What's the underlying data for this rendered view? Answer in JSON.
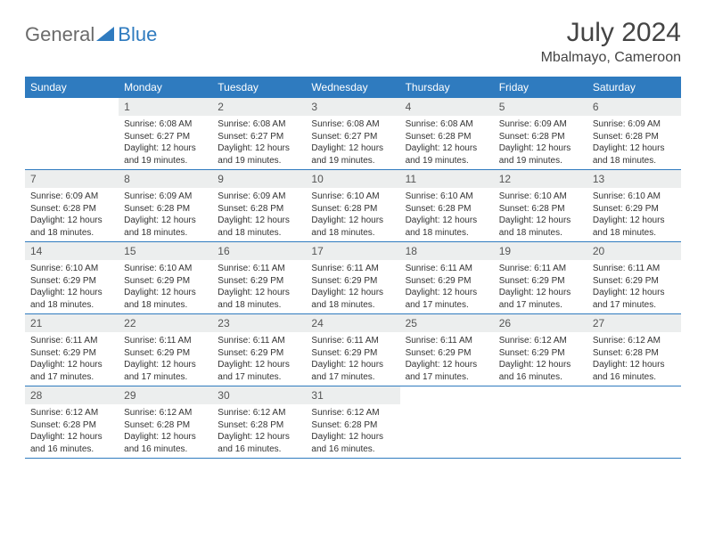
{
  "logo": {
    "text1": "General",
    "text2": "Blue"
  },
  "title": "July 2024",
  "location": "Mbalmayo, Cameroon",
  "colors": {
    "header_bg": "#2f7bbf",
    "daynum_bg": "#eceeee",
    "border": "#2f7bbf"
  },
  "weekdays": [
    "Sunday",
    "Monday",
    "Tuesday",
    "Wednesday",
    "Thursday",
    "Friday",
    "Saturday"
  ],
  "first_day_index": 1,
  "days": [
    {
      "n": 1,
      "sr": "6:08 AM",
      "ss": "6:27 PM",
      "dl": "12 hours and 19 minutes."
    },
    {
      "n": 2,
      "sr": "6:08 AM",
      "ss": "6:27 PM",
      "dl": "12 hours and 19 minutes."
    },
    {
      "n": 3,
      "sr": "6:08 AM",
      "ss": "6:27 PM",
      "dl": "12 hours and 19 minutes."
    },
    {
      "n": 4,
      "sr": "6:08 AM",
      "ss": "6:28 PM",
      "dl": "12 hours and 19 minutes."
    },
    {
      "n": 5,
      "sr": "6:09 AM",
      "ss": "6:28 PM",
      "dl": "12 hours and 19 minutes."
    },
    {
      "n": 6,
      "sr": "6:09 AM",
      "ss": "6:28 PM",
      "dl": "12 hours and 18 minutes."
    },
    {
      "n": 7,
      "sr": "6:09 AM",
      "ss": "6:28 PM",
      "dl": "12 hours and 18 minutes."
    },
    {
      "n": 8,
      "sr": "6:09 AM",
      "ss": "6:28 PM",
      "dl": "12 hours and 18 minutes."
    },
    {
      "n": 9,
      "sr": "6:09 AM",
      "ss": "6:28 PM",
      "dl": "12 hours and 18 minutes."
    },
    {
      "n": 10,
      "sr": "6:10 AM",
      "ss": "6:28 PM",
      "dl": "12 hours and 18 minutes."
    },
    {
      "n": 11,
      "sr": "6:10 AM",
      "ss": "6:28 PM",
      "dl": "12 hours and 18 minutes."
    },
    {
      "n": 12,
      "sr": "6:10 AM",
      "ss": "6:28 PM",
      "dl": "12 hours and 18 minutes."
    },
    {
      "n": 13,
      "sr": "6:10 AM",
      "ss": "6:29 PM",
      "dl": "12 hours and 18 minutes."
    },
    {
      "n": 14,
      "sr": "6:10 AM",
      "ss": "6:29 PM",
      "dl": "12 hours and 18 minutes."
    },
    {
      "n": 15,
      "sr": "6:10 AM",
      "ss": "6:29 PM",
      "dl": "12 hours and 18 minutes."
    },
    {
      "n": 16,
      "sr": "6:11 AM",
      "ss": "6:29 PM",
      "dl": "12 hours and 18 minutes."
    },
    {
      "n": 17,
      "sr": "6:11 AM",
      "ss": "6:29 PM",
      "dl": "12 hours and 18 minutes."
    },
    {
      "n": 18,
      "sr": "6:11 AM",
      "ss": "6:29 PM",
      "dl": "12 hours and 17 minutes."
    },
    {
      "n": 19,
      "sr": "6:11 AM",
      "ss": "6:29 PM",
      "dl": "12 hours and 17 minutes."
    },
    {
      "n": 20,
      "sr": "6:11 AM",
      "ss": "6:29 PM",
      "dl": "12 hours and 17 minutes."
    },
    {
      "n": 21,
      "sr": "6:11 AM",
      "ss": "6:29 PM",
      "dl": "12 hours and 17 minutes."
    },
    {
      "n": 22,
      "sr": "6:11 AM",
      "ss": "6:29 PM",
      "dl": "12 hours and 17 minutes."
    },
    {
      "n": 23,
      "sr": "6:11 AM",
      "ss": "6:29 PM",
      "dl": "12 hours and 17 minutes."
    },
    {
      "n": 24,
      "sr": "6:11 AM",
      "ss": "6:29 PM",
      "dl": "12 hours and 17 minutes."
    },
    {
      "n": 25,
      "sr": "6:11 AM",
      "ss": "6:29 PM",
      "dl": "12 hours and 17 minutes."
    },
    {
      "n": 26,
      "sr": "6:12 AM",
      "ss": "6:29 PM",
      "dl": "12 hours and 16 minutes."
    },
    {
      "n": 27,
      "sr": "6:12 AM",
      "ss": "6:28 PM",
      "dl": "12 hours and 16 minutes."
    },
    {
      "n": 28,
      "sr": "6:12 AM",
      "ss": "6:28 PM",
      "dl": "12 hours and 16 minutes."
    },
    {
      "n": 29,
      "sr": "6:12 AM",
      "ss": "6:28 PM",
      "dl": "12 hours and 16 minutes."
    },
    {
      "n": 30,
      "sr": "6:12 AM",
      "ss": "6:28 PM",
      "dl": "12 hours and 16 minutes."
    },
    {
      "n": 31,
      "sr": "6:12 AM",
      "ss": "6:28 PM",
      "dl": "12 hours and 16 minutes."
    }
  ],
  "labels": {
    "sunrise": "Sunrise:",
    "sunset": "Sunset:",
    "daylight": "Daylight:"
  }
}
